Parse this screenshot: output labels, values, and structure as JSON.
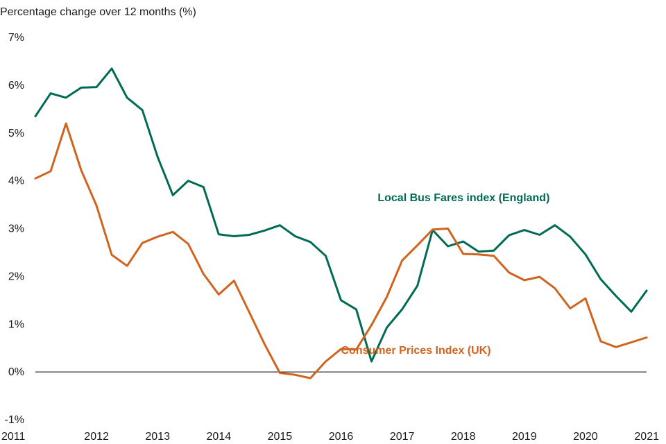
{
  "chart_data": {
    "type": "line",
    "title": "",
    "ylabel": "Percentage change over 12 months (%)",
    "xlabel": "",
    "ylim": [
      -1,
      7
    ],
    "xlim": [
      2011,
      2021
    ],
    "yticks": [
      "-1%",
      "0%",
      "1%",
      "2%",
      "3%",
      "4%",
      "5%",
      "6%",
      "7%"
    ],
    "xticks": [
      "2011",
      "2012",
      "2013",
      "2014",
      "2015",
      "2016",
      "2017",
      "2018",
      "2019",
      "2020",
      "2021"
    ],
    "baseline": 0,
    "series": [
      {
        "name": "Local Bus Fares index (England)",
        "color": "#006b54",
        "x": [
          2011.0,
          2011.25,
          2011.5,
          2011.75,
          2012.0,
          2012.25,
          2012.5,
          2012.75,
          2013.0,
          2013.25,
          2013.5,
          2013.75,
          2014.0,
          2014.25,
          2014.5,
          2014.75,
          2015.0,
          2015.25,
          2015.5,
          2015.75,
          2016.0,
          2016.25,
          2016.5,
          2016.75,
          2017.0,
          2017.25,
          2017.5,
          2017.75,
          2018.0,
          2018.25,
          2018.5,
          2018.75,
          2019.0,
          2019.25,
          2019.5,
          2019.75,
          2020.0,
          2020.25,
          2020.5,
          2020.75,
          2021.0
        ],
        "values": [
          5.35,
          5.83,
          5.74,
          5.95,
          5.96,
          6.35,
          5.74,
          5.48,
          4.5,
          3.7,
          4.0,
          3.87,
          2.88,
          2.84,
          2.87,
          2.96,
          3.07,
          2.84,
          2.72,
          2.43,
          1.5,
          1.31,
          0.22,
          0.93,
          1.31,
          1.8,
          2.97,
          2.63,
          2.73,
          2.52,
          2.54,
          2.86,
          2.97,
          2.87,
          3.07,
          2.83,
          2.46,
          1.94,
          1.59,
          1.26,
          1.7
        ]
      },
      {
        "name": "Consumer Prices Index (UK)",
        "color": "#d0631e",
        "x": [
          2011.0,
          2011.25,
          2011.5,
          2011.75,
          2012.0,
          2012.25,
          2012.5,
          2012.75,
          2013.0,
          2013.25,
          2013.5,
          2013.75,
          2014.0,
          2014.25,
          2014.5,
          2014.75,
          2015.0,
          2015.25,
          2015.5,
          2015.75,
          2016.0,
          2016.25,
          2016.5,
          2016.75,
          2017.0,
          2017.25,
          2017.5,
          2017.75,
          2018.0,
          2018.25,
          2018.5,
          2018.75,
          2019.0,
          2019.25,
          2019.5,
          2019.75,
          2020.0,
          2020.25,
          2020.5,
          2020.75,
          2021.0
        ],
        "values": [
          4.05,
          4.2,
          5.2,
          4.22,
          3.48,
          2.45,
          2.22,
          2.7,
          2.83,
          2.93,
          2.68,
          2.05,
          1.62,
          1.91,
          1.25,
          0.58,
          -0.02,
          -0.06,
          -0.13,
          0.22,
          0.48,
          0.47,
          0.98,
          1.57,
          2.33,
          2.65,
          2.98,
          3.0,
          2.47,
          2.46,
          2.43,
          2.08,
          1.92,
          1.99,
          1.75,
          1.33,
          1.54,
          0.64,
          0.52,
          0.62,
          0.72
        ]
      }
    ],
    "annotations": [
      {
        "text": "Local Bus Fares index (England)",
        "series": 0,
        "anchor_x": 2016.6,
        "anchor_y": 3.57
      },
      {
        "text": "Consumer Prices Index (UK)",
        "series": 1,
        "anchor_x": 2016.0,
        "anchor_y": 0.38
      }
    ]
  }
}
